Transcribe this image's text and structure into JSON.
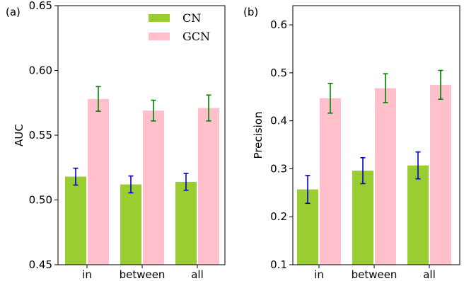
{
  "chart_data": [
    {
      "type": "bar",
      "panel_label": "(a)",
      "ylabel": "AUC",
      "xlabel": "",
      "categories": [
        "in",
        "between",
        "all"
      ],
      "ylim": [
        0.45,
        0.65
      ],
      "yticks": [
        "0.45",
        "0.50",
        "0.55",
        "0.60",
        "0.65"
      ],
      "series": [
        {
          "name": "CN",
          "color": "#9acd32",
          "error_color": "#0000cd",
          "values": [
            0.518,
            0.512,
            0.514
          ],
          "errors": [
            0.0065,
            0.0065,
            0.0065
          ]
        },
        {
          "name": "GCN",
          "color": "#ffc0cb",
          "error_color": "#008000",
          "values": [
            0.578,
            0.569,
            0.571
          ],
          "errors": [
            0.0095,
            0.008,
            0.01
          ]
        }
      ],
      "legend": "top-right",
      "grid": false
    },
    {
      "type": "bar",
      "panel_label": "(b)",
      "ylabel": "Precision",
      "xlabel": "",
      "categories": [
        "in",
        "between",
        "all"
      ],
      "ylim": [
        0.1,
        0.64
      ],
      "yticks": [
        "0.1",
        "0.2",
        "0.3",
        "0.4",
        "0.5",
        "0.6"
      ],
      "series": [
        {
          "name": "CN",
          "color": "#9acd32",
          "error_color": "#0000cd",
          "values": [
            0.257,
            0.296,
            0.307
          ],
          "errors": [
            0.029,
            0.027,
            0.028
          ]
        },
        {
          "name": "GCN",
          "color": "#ffc0cb",
          "error_color": "#008000",
          "values": [
            0.447,
            0.468,
            0.475
          ],
          "errors": [
            0.031,
            0.03,
            0.03
          ]
        }
      ],
      "legend": "none",
      "grid": false
    }
  ]
}
